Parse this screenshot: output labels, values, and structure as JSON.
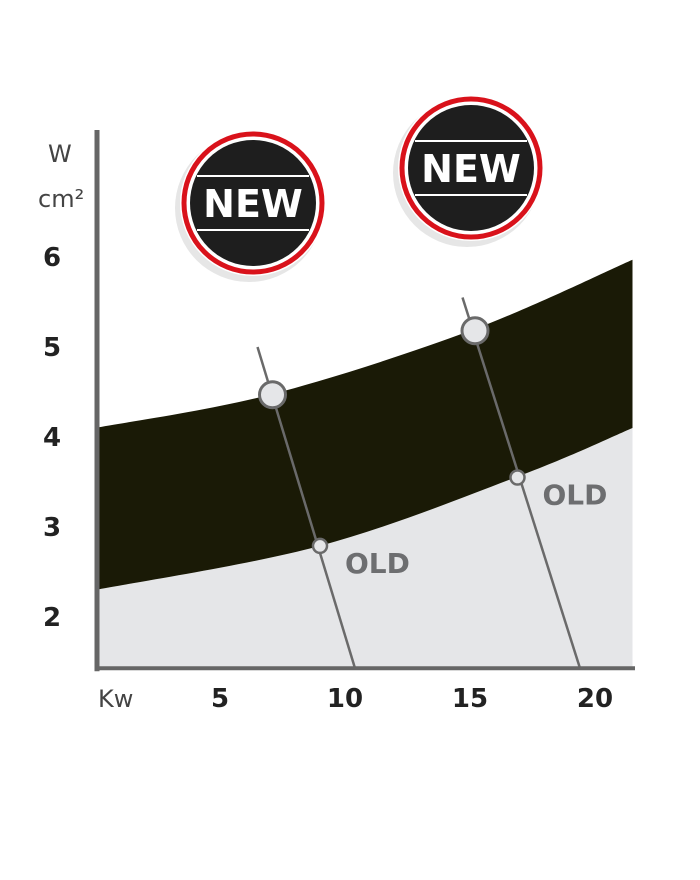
{
  "chart_data": {
    "type": "area",
    "title": "",
    "ylabel_line1": "W",
    "ylabel_line2": "cm²",
    "xlabel": "Kw",
    "xticks": [
      5,
      10,
      15,
      20
    ],
    "yticks": [
      2,
      3,
      4,
      5,
      6
    ],
    "xlim": [
      0,
      21.5
    ],
    "ylim": [
      1.43,
      7.5
    ],
    "grid": false,
    "band_upper": [
      [
        0,
        4.1
      ],
      [
        7,
        4.47
      ],
      [
        15,
        5.18
      ],
      [
        21.5,
        5.97
      ]
    ],
    "band_lower": [
      [
        0,
        2.3
      ],
      [
        9,
        2.79
      ],
      [
        17,
        3.57
      ],
      [
        21.5,
        4.1
      ]
    ],
    "guide_lines": [
      {
        "from": [
          6.5,
          5.0
        ],
        "to": [
          10.4,
          1.43
        ],
        "new_point": [
          7.1,
          4.47
        ],
        "old_point": [
          9.0,
          2.79
        ]
      },
      {
        "from": [
          14.7,
          5.55
        ],
        "to": [
          19.4,
          1.43
        ],
        "new_point": [
          15.2,
          5.18
        ],
        "old_point": [
          16.9,
          3.55
        ]
      }
    ],
    "old_label": "OLD",
    "badge_label": "NEW",
    "colors": {
      "band": "#1a1a06",
      "below": "#e5e6e8",
      "axis": "#666666",
      "badge_ring": "#d9121b",
      "badge_fill": "#1e1e1e",
      "old_text": "#6d6e70"
    }
  }
}
